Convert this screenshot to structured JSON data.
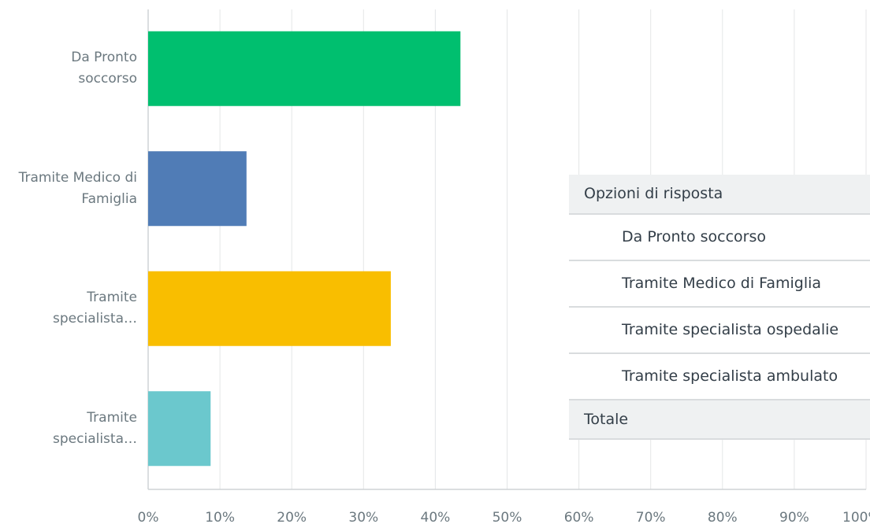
{
  "chart_data": {
    "type": "bar",
    "orientation": "horizontal",
    "categories": [
      "Da Pronto soccorso",
      "Tramite Medico di Famiglia",
      "Tramite specialista…",
      "Tramite specialista…"
    ],
    "values": [
      43.5,
      13.7,
      33.8,
      8.7
    ],
    "colors": [
      "#00bf6f",
      "#507cb6",
      "#f9be00",
      "#6bc8cd"
    ],
    "xlim": [
      0,
      100
    ],
    "xticks": [
      {
        "value": 0,
        "label": "0%"
      },
      {
        "value": 10,
        "label": "10%"
      },
      {
        "value": 20,
        "label": "20%"
      },
      {
        "value": 30,
        "label": "30%"
      },
      {
        "value": 40,
        "label": "40%"
      },
      {
        "value": 50,
        "label": "50%"
      },
      {
        "value": 60,
        "label": "60%"
      },
      {
        "value": 70,
        "label": "70%"
      },
      {
        "value": 80,
        "label": "80%"
      },
      {
        "value": 90,
        "label": "90%"
      },
      {
        "value": 100,
        "label": "100%"
      }
    ],
    "grid": true
  },
  "table": {
    "header": "Opzioni di risposta",
    "rows": [
      "Da Pronto soccorso",
      "Tramite Medico di Famiglia",
      "Tramite specialista ospedalie",
      "Tramite specialista ambulato"
    ],
    "total": "Totale"
  }
}
